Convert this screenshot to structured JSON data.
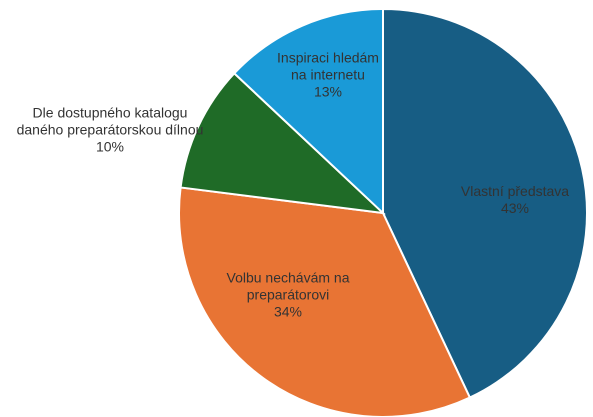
{
  "chart_data": {
    "type": "pie",
    "categories": [
      "Vlastní představa",
      "Volbu nechávám na preparátorovi",
      "Dle dostupného katalogu daného preparátorskou dílnou",
      "Inspiraci hledám na internetu"
    ],
    "values": [
      43,
      34,
      10,
      13
    ],
    "value_labels": [
      "43%",
      "34%",
      "10%",
      "13%"
    ],
    "colors": [
      "#175d84",
      "#e87434",
      "#1f6b27",
      "#1a9ad7"
    ]
  }
}
